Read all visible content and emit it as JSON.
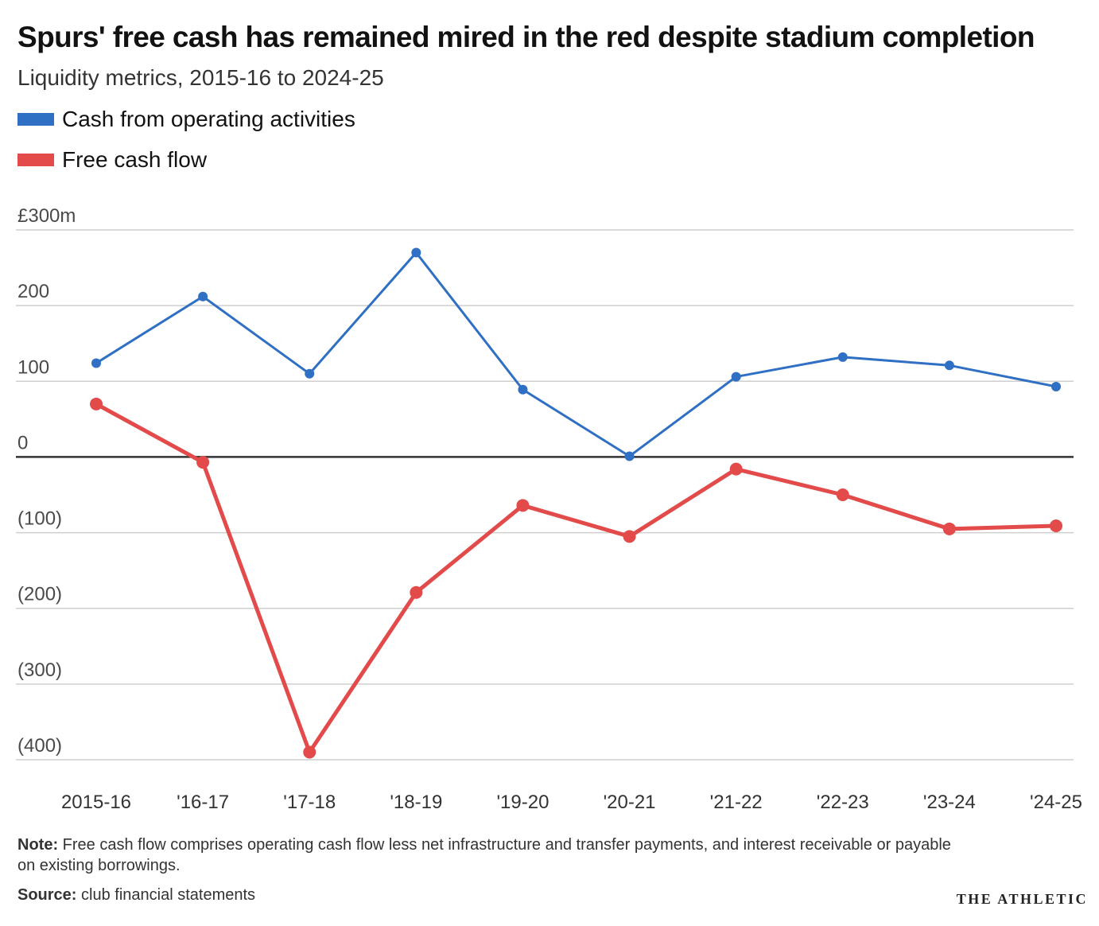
{
  "title": "Spurs' free cash has remained mired in the red despite stadium completion",
  "subtitle": "Liquidity metrics, 2015-16 to 2024-25",
  "note_label": "Note:",
  "note_text": "Free cash flow comprises operating cash flow less net infrastructure and transfer payments, and interest receivable or payable on existing borrowings.",
  "source_label": "Source:",
  "source_text": "club financial statements",
  "brand": "THE ATHLETIC",
  "chart_data": {
    "type": "line",
    "categories": [
      "2015-16",
      "'16-17",
      "'17-18",
      "'18-19",
      "'19-20",
      "'20-21",
      "'21-22",
      "'22-23",
      "'23-24",
      "'24-25"
    ],
    "y_tick_values": [
      300,
      200,
      100,
      0,
      -100,
      -200,
      -300,
      -400
    ],
    "y_tick_labels": [
      "£300m",
      "200",
      "100",
      "0",
      "(100)",
      "(200)",
      "(300)",
      "(400)"
    ],
    "ylim": [
      -400,
      300
    ],
    "grid": true,
    "legend_position": "top-left",
    "series": [
      {
        "name": "Cash from operating activities",
        "color": "#2f6fc4",
        "values": [
          124,
          212,
          110,
          270,
          89,
          1,
          106,
          132,
          121,
          93
        ]
      },
      {
        "name": "Free cash flow",
        "color": "#e34a4a",
        "values": [
          70,
          -7,
          -390,
          -179,
          -64,
          -105,
          -16,
          -50,
          -95,
          -91
        ]
      }
    ]
  }
}
